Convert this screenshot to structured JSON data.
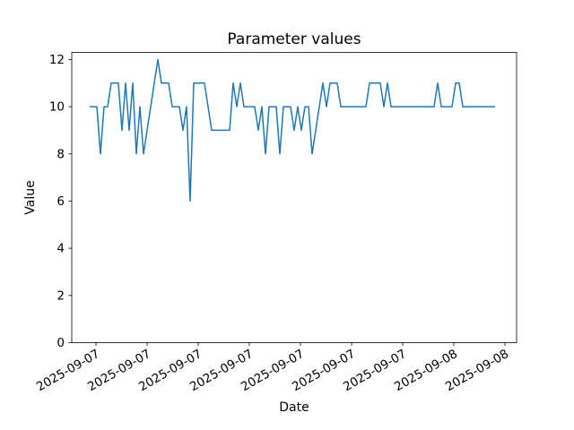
{
  "chart_data": {
    "type": "line",
    "title": "Parameter values",
    "xlabel": "Date",
    "ylabel": "Value",
    "line_color": "#1f77b4",
    "grid": false,
    "legend": "none",
    "ylim": [
      0,
      12.3
    ],
    "yticks": [
      0,
      2,
      4,
      6,
      8,
      10,
      12
    ],
    "xtick_labels": [
      "2025-09-07",
      "2025-09-07",
      "2025-09-07",
      "2025-09-07",
      "2025-09-07",
      "2025-09-07",
      "2025-09-07",
      "2025-09-08",
      "2025-09-08"
    ],
    "values": [
      10,
      10,
      10,
      8,
      10,
      10,
      11,
      11,
      11,
      9,
      11,
      9,
      11,
      8,
      10,
      8,
      9,
      10,
      11,
      12,
      11,
      11,
      11,
      10,
      10,
      10,
      9,
      10,
      6,
      11,
      11,
      11,
      11,
      10,
      9,
      9,
      9,
      9,
      9,
      9,
      11,
      10,
      11,
      10,
      10,
      10,
      10,
      9,
      10,
      8,
      10,
      10,
      10,
      8,
      10,
      10,
      10,
      9,
      10,
      9,
      10,
      10,
      8,
      9,
      10,
      11,
      10,
      11,
      11,
      11,
      10,
      10,
      10,
      10,
      10,
      10,
      10,
      10,
      11,
      11,
      11,
      11,
      10,
      11,
      10,
      10,
      10,
      10,
      10,
      10,
      10,
      10,
      10,
      10,
      10,
      10,
      10,
      11,
      10,
      10,
      10,
      10,
      11,
      11,
      10,
      10,
      10,
      10,
      10,
      10,
      10,
      10,
      10,
      10
    ]
  }
}
